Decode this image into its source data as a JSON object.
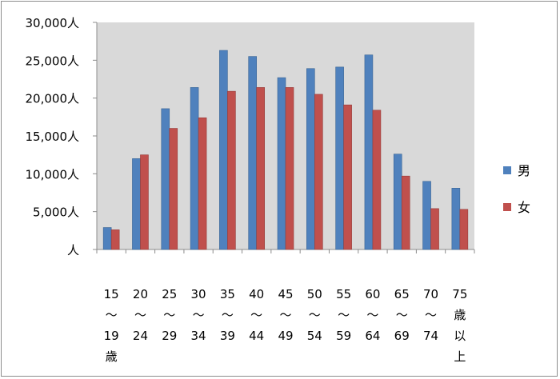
{
  "chart_data": {
    "type": "bar",
    "title": "",
    "xlabel": "",
    "ylabel": "",
    "ylim": [
      0,
      30000
    ],
    "y_ticks": [
      0,
      5000,
      10000,
      15000,
      20000,
      25000,
      30000
    ],
    "y_tick_labels": [
      "人",
      "5,000人",
      "10,000人",
      "15,000人",
      "20,000人",
      "25,000人",
      "30,000人"
    ],
    "grid": false,
    "plot_background": "#d9d9d9",
    "legend_position": "right",
    "categories": [
      [
        "15",
        "〜",
        "19",
        "歳"
      ],
      [
        "20",
        "〜",
        "24"
      ],
      [
        "25",
        "〜",
        "29"
      ],
      [
        "30",
        "〜",
        "34"
      ],
      [
        "35",
        "〜",
        "39"
      ],
      [
        "40",
        "〜",
        "44"
      ],
      [
        "45",
        "〜",
        "49"
      ],
      [
        "50",
        "〜",
        "54"
      ],
      [
        "55",
        "〜",
        "59"
      ],
      [
        "60",
        "〜",
        "64"
      ],
      [
        "65",
        "〜",
        "69"
      ],
      [
        "70",
        "〜",
        "74"
      ],
      [
        "75",
        "歳",
        "以",
        "上"
      ]
    ],
    "series": [
      {
        "name": "男",
        "color": "#4f81bd",
        "values": [
          2900,
          12000,
          18600,
          21400,
          26300,
          25500,
          22700,
          23900,
          24100,
          25700,
          12600,
          9000,
          8100
        ]
      },
      {
        "name": "女",
        "color": "#c0504d",
        "values": [
          2600,
          12500,
          16000,
          17400,
          20900,
          21400,
          21400,
          20500,
          19100,
          18400,
          9700,
          5400,
          5300
        ]
      }
    ]
  }
}
